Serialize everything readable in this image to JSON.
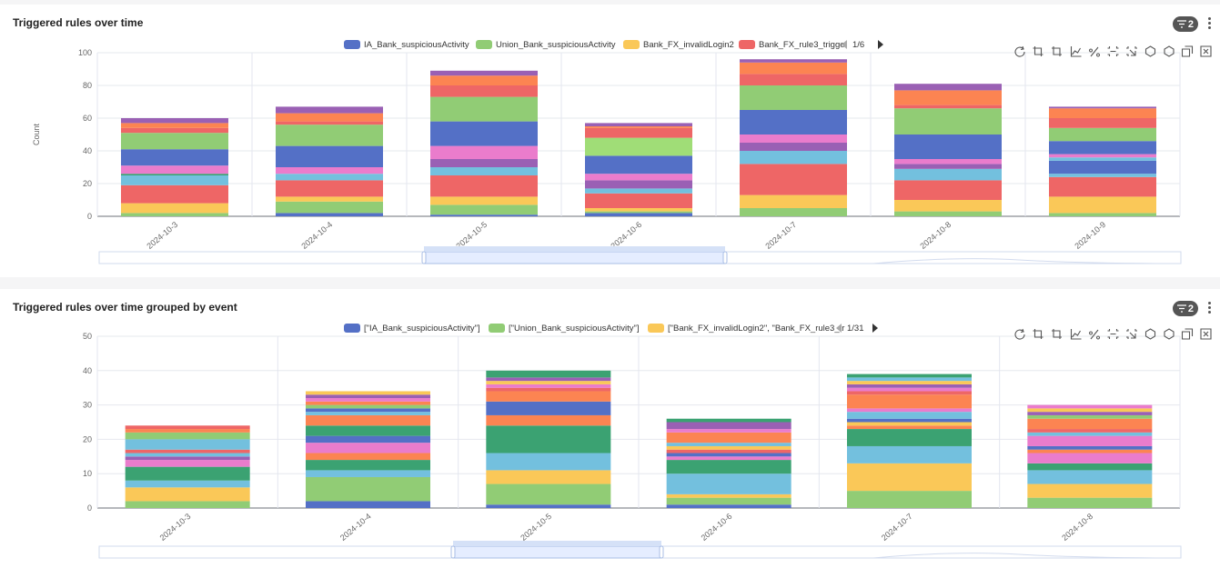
{
  "panels": [
    {
      "title": "Triggered rules over time",
      "badge": "2"
    },
    {
      "title": "Triggered rules over time grouped by event",
      "badge": "2"
    }
  ],
  "colors": [
    "#5470c6",
    "#91cc75",
    "#fac858",
    "#ee6666",
    "#73c0de",
    "#3ba272",
    "#fc8452",
    "#9a60b4",
    "#ea7ccc",
    "#a0dd77"
  ],
  "toolbox_icons": [
    "refresh-icon",
    "crop-icon",
    "crop-alt-icon",
    "line-chart-icon",
    "percent-icon",
    "zoom-box-icon",
    "zoom-reset-icon",
    "restore-icon",
    "settings-icon",
    "copy-icon",
    "close-icon"
  ],
  "chart_data": [
    {
      "type": "bar",
      "stacked": true,
      "ylabel": "Count",
      "ylim": [
        0,
        100
      ],
      "yticks": [
        0,
        20,
        40,
        60,
        80,
        100
      ],
      "grid": true,
      "legend_position": "top",
      "legend": [
        "IA_Bank_suspiciousActivity",
        "Union_Bank_suspiciousActivity",
        "Bank_FX_invalidLogin2",
        "Bank_FX_rule3_trigge"
      ],
      "legend_page": "1/6",
      "categories": [
        "2024-10-3",
        "2024-10-4",
        "2024-10-5",
        "2024-10-6",
        "2024-10-7",
        "2024-10-8",
        "2024-10-9"
      ],
      "stacks": [
        [
          {
            "c": 1,
            "v": 2
          },
          {
            "c": 2,
            "v": 6
          },
          {
            "c": 3,
            "v": 11
          },
          {
            "c": 4,
            "v": 6
          },
          {
            "c": 5,
            "v": 1
          },
          {
            "c": 8,
            "v": 5
          },
          {
            "c": 0,
            "v": 10
          },
          {
            "c": 1,
            "v": 10
          },
          {
            "c": 3,
            "v": 3
          },
          {
            "c": 6,
            "v": 3
          },
          {
            "c": 7,
            "v": 3
          }
        ],
        [
          {
            "c": 0,
            "v": 2
          },
          {
            "c": 1,
            "v": 7
          },
          {
            "c": 2,
            "v": 3
          },
          {
            "c": 3,
            "v": 10
          },
          {
            "c": 4,
            "v": 4
          },
          {
            "c": 8,
            "v": 4
          },
          {
            "c": 0,
            "v": 13
          },
          {
            "c": 1,
            "v": 13
          },
          {
            "c": 3,
            "v": 2
          },
          {
            "c": 6,
            "v": 5
          },
          {
            "c": 7,
            "v": 4
          }
        ],
        [
          {
            "c": 0,
            "v": 1
          },
          {
            "c": 1,
            "v": 6
          },
          {
            "c": 2,
            "v": 5
          },
          {
            "c": 3,
            "v": 13
          },
          {
            "c": 4,
            "v": 5
          },
          {
            "c": 7,
            "v": 5
          },
          {
            "c": 8,
            "v": 8
          },
          {
            "c": 0,
            "v": 15
          },
          {
            "c": 1,
            "v": 15
          },
          {
            "c": 3,
            "v": 7
          },
          {
            "c": 6,
            "v": 6
          },
          {
            "c": 7,
            "v": 3
          }
        ],
        [
          {
            "c": 0,
            "v": 2
          },
          {
            "c": 1,
            "v": 1
          },
          {
            "c": 2,
            "v": 2
          },
          {
            "c": 3,
            "v": 9
          },
          {
            "c": 4,
            "v": 3
          },
          {
            "c": 7,
            "v": 5
          },
          {
            "c": 8,
            "v": 4
          },
          {
            "c": 0,
            "v": 11
          },
          {
            "c": 9,
            "v": 11
          },
          {
            "c": 3,
            "v": 6
          },
          {
            "c": 6,
            "v": 1
          },
          {
            "c": 7,
            "v": 2
          }
        ],
        [
          {
            "c": 1,
            "v": 5
          },
          {
            "c": 2,
            "v": 8
          },
          {
            "c": 3,
            "v": 19
          },
          {
            "c": 4,
            "v": 8
          },
          {
            "c": 7,
            "v": 5
          },
          {
            "c": 8,
            "v": 5
          },
          {
            "c": 0,
            "v": 15
          },
          {
            "c": 1,
            "v": 15
          },
          {
            "c": 3,
            "v": 7
          },
          {
            "c": 6,
            "v": 7
          },
          {
            "c": 7,
            "v": 2
          }
        ],
        [
          {
            "c": 1,
            "v": 3
          },
          {
            "c": 2,
            "v": 7
          },
          {
            "c": 3,
            "v": 12
          },
          {
            "c": 4,
            "v": 7
          },
          {
            "c": 7,
            "v": 3
          },
          {
            "c": 8,
            "v": 3
          },
          {
            "c": 0,
            "v": 15
          },
          {
            "c": 1,
            "v": 16
          },
          {
            "c": 3,
            "v": 2
          },
          {
            "c": 6,
            "v": 9
          },
          {
            "c": 7,
            "v": 4
          }
        ],
        [
          {
            "c": 1,
            "v": 2
          },
          {
            "c": 2,
            "v": 10
          },
          {
            "c": 3,
            "v": 12
          },
          {
            "c": 4,
            "v": 2
          },
          {
            "c": 0,
            "v": 8
          },
          {
            "c": 4,
            "v": 2
          },
          {
            "c": 8,
            "v": 2
          },
          {
            "c": 0,
            "v": 8
          },
          {
            "c": 1,
            "v": 8
          },
          {
            "c": 3,
            "v": 6
          },
          {
            "c": 6,
            "v": 6
          },
          {
            "c": 7,
            "v": 1
          }
        ]
      ]
    },
    {
      "type": "bar",
      "stacked": true,
      "ylim": [
        0,
        50
      ],
      "yticks": [
        0,
        10,
        20,
        30,
        40,
        50
      ],
      "grid": true,
      "legend_position": "top",
      "legend": [
        "[\"IA_Bank_suspiciousActivity\"]",
        "[\"Union_Bank_suspiciousActivity\"]",
        "[\"Bank_FX_invalidLogin2\", \"Bank_FX_rule3_tr"
      ],
      "legend_page": "1/31",
      "categories": [
        "2024-10-3",
        "2024-10-4",
        "2024-10-5",
        "2024-10-6",
        "2024-10-7",
        "2024-10-8"
      ],
      "stacks": [
        [
          {
            "c": 1,
            "v": 2
          },
          {
            "c": 2,
            "v": 4
          },
          {
            "c": 4,
            "v": 2
          },
          {
            "c": 5,
            "v": 4
          },
          {
            "c": 8,
            "v": 2
          },
          {
            "c": 7,
            "v": 1
          },
          {
            "c": 4,
            "v": 1
          },
          {
            "c": 3,
            "v": 1
          },
          {
            "c": 4,
            "v": 3
          },
          {
            "c": 1,
            "v": 2
          },
          {
            "c": 6,
            "v": 1
          },
          {
            "c": 3,
            "v": 1
          }
        ],
        [
          {
            "c": 0,
            "v": 2
          },
          {
            "c": 1,
            "v": 7
          },
          {
            "c": 4,
            "v": 2
          },
          {
            "c": 5,
            "v": 3
          },
          {
            "c": 6,
            "v": 2
          },
          {
            "c": 8,
            "v": 3
          },
          {
            "c": 0,
            "v": 2
          },
          {
            "c": 5,
            "v": 3
          },
          {
            "c": 6,
            "v": 3
          },
          {
            "c": 4,
            "v": 1
          },
          {
            "c": 0,
            "v": 1
          },
          {
            "c": 1,
            "v": 1
          },
          {
            "c": 6,
            "v": 1
          },
          {
            "c": 8,
            "v": 1
          },
          {
            "c": 7,
            "v": 1
          },
          {
            "c": 2,
            "v": 1
          }
        ],
        [
          {
            "c": 0,
            "v": 1
          },
          {
            "c": 1,
            "v": 6
          },
          {
            "c": 2,
            "v": 4
          },
          {
            "c": 4,
            "v": 5
          },
          {
            "c": 5,
            "v": 8
          },
          {
            "c": 6,
            "v": 3
          },
          {
            "c": 0,
            "v": 4
          },
          {
            "c": 6,
            "v": 3
          },
          {
            "c": 3,
            "v": 1
          },
          {
            "c": 8,
            "v": 1
          },
          {
            "c": 2,
            "v": 1
          },
          {
            "c": 7,
            "v": 1
          },
          {
            "c": 5,
            "v": 2
          }
        ],
        [
          {
            "c": 0,
            "v": 1
          },
          {
            "c": 1,
            "v": 2
          },
          {
            "c": 2,
            "v": 1
          },
          {
            "c": 4,
            "v": 6
          },
          {
            "c": 5,
            "v": 4
          },
          {
            "c": 8,
            "v": 1
          },
          {
            "c": 0,
            "v": 1
          },
          {
            "c": 3,
            "v": 1
          },
          {
            "c": 2,
            "v": 1
          },
          {
            "c": 4,
            "v": 1
          },
          {
            "c": 6,
            "v": 3
          },
          {
            "c": 8,
            "v": 1
          },
          {
            "c": 7,
            "v": 2
          },
          {
            "c": 5,
            "v": 1
          }
        ],
        [
          {
            "c": 1,
            "v": 5
          },
          {
            "c": 2,
            "v": 8
          },
          {
            "c": 4,
            "v": 5
          },
          {
            "c": 5,
            "v": 5
          },
          {
            "c": 6,
            "v": 1
          },
          {
            "c": 2,
            "v": 1
          },
          {
            "c": 0,
            "v": 1
          },
          {
            "c": 4,
            "v": 2
          },
          {
            "c": 8,
            "v": 1
          },
          {
            "c": 6,
            "v": 4
          },
          {
            "c": 3,
            "v": 1
          },
          {
            "c": 8,
            "v": 1
          },
          {
            "c": 7,
            "v": 1
          },
          {
            "c": 2,
            "v": 1
          },
          {
            "c": 4,
            "v": 1
          },
          {
            "c": 5,
            "v": 1
          }
        ],
        [
          {
            "c": 1,
            "v": 3
          },
          {
            "c": 2,
            "v": 4
          },
          {
            "c": 4,
            "v": 4
          },
          {
            "c": 5,
            "v": 2
          },
          {
            "c": 8,
            "v": 3
          },
          {
            "c": 6,
            "v": 1
          },
          {
            "c": 0,
            "v": 1
          },
          {
            "c": 8,
            "v": 3
          },
          {
            "c": 4,
            "v": 1
          },
          {
            "c": 3,
            "v": 1
          },
          {
            "c": 6,
            "v": 3
          },
          {
            "c": 1,
            "v": 1
          },
          {
            "c": 7,
            "v": 1
          },
          {
            "c": 2,
            "v": 1
          },
          {
            "c": 8,
            "v": 1
          }
        ]
      ]
    }
  ]
}
